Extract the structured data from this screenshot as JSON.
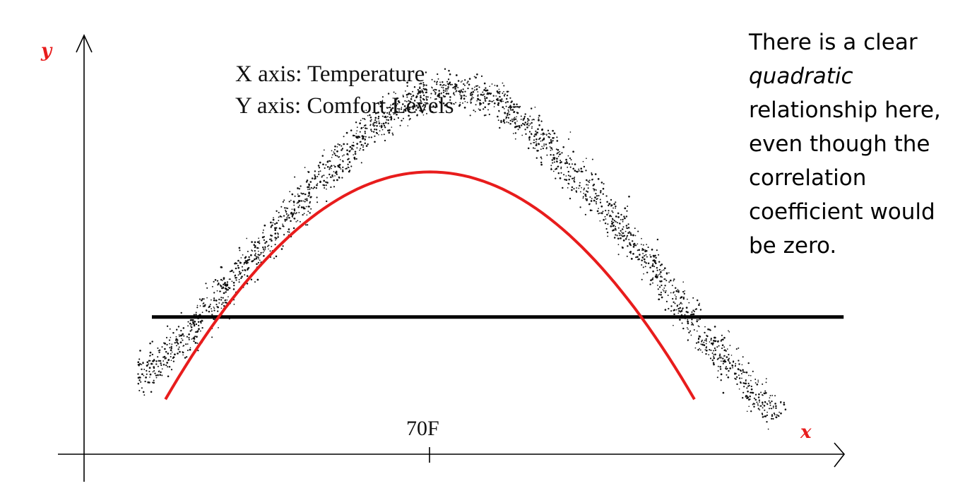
{
  "chart_data": {
    "type": "scatter",
    "title": "",
    "xlabel": "x",
    "ylabel": "y",
    "info_lines": [
      "X axis: Temperature",
      "Y axis: Comfort Levels"
    ],
    "x_tick_labels": [
      "70F"
    ],
    "grid": false,
    "series": [
      {
        "kind": "scatter_band",
        "points": [
          {
            "x": 0.06,
            "y": 0.16
          },
          {
            "x": 0.12,
            "y": 0.25
          },
          {
            "x": 0.18,
            "y": 0.36
          },
          {
            "x": 0.24,
            "y": 0.48
          },
          {
            "x": 0.3,
            "y": 0.6
          },
          {
            "x": 0.36,
            "y": 0.72
          },
          {
            "x": 0.42,
            "y": 0.83
          },
          {
            "x": 0.48,
            "y": 0.9
          },
          {
            "x": 0.54,
            "y": 0.93
          },
          {
            "x": 0.6,
            "y": 0.91
          },
          {
            "x": 0.66,
            "y": 0.83
          },
          {
            "x": 0.72,
            "y": 0.72
          },
          {
            "x": 0.78,
            "y": 0.6
          },
          {
            "x": 0.84,
            "y": 0.47
          },
          {
            "x": 0.9,
            "y": 0.33
          },
          {
            "x": 0.96,
            "y": 0.21
          },
          {
            "x": 1.02,
            "y": 0.1
          }
        ]
      },
      {
        "kind": "quadratic_fit",
        "color": "#e81c1c",
        "x_range": [
          0.12,
          0.9
        ],
        "vertex": {
          "x": 0.51,
          "y": 0.72
        },
        "end_y": 0.14
      },
      {
        "kind": "mean_line",
        "color": "#000000",
        "x_range": [
          0.1,
          1.12
        ],
        "y": 0.35
      }
    ],
    "colors": {
      "axis_letters": "#e81c1c",
      "dots": "#111111",
      "fit": "#e81c1c"
    }
  },
  "note": {
    "lines": [
      {
        "text": "There is a clear",
        "italic": false
      },
      {
        "text": "quadratic",
        "italic": true
      },
      {
        "text": "relationship here,",
        "italic": false
      },
      {
        "text": "even though the",
        "italic": false
      },
      {
        "text": "correlation",
        "italic": false
      },
      {
        "text": "coefficient would",
        "italic": false
      },
      {
        "text": "be zero.",
        "italic": false
      }
    ]
  }
}
